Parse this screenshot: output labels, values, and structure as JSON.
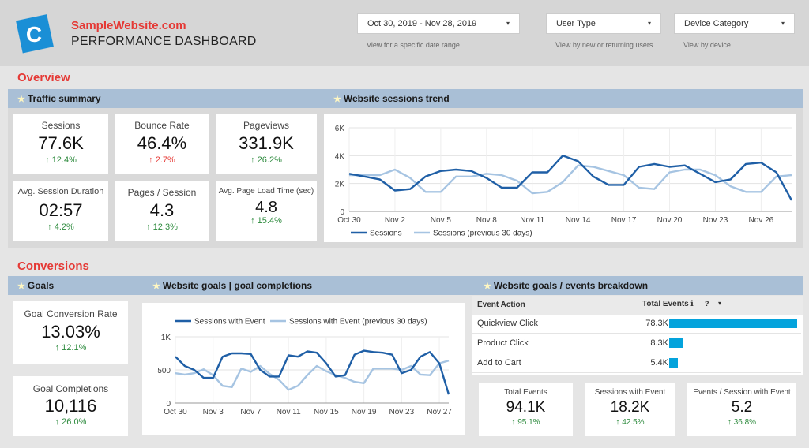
{
  "header": {
    "brand_name": "SampleWebsite.com",
    "title": "PERFORMANCE DASHBOARD",
    "logo_letter": "C",
    "controls": [
      {
        "value": "Oct 30, 2019 - Nov 28, 2019",
        "hint": "View for a specific date range"
      },
      {
        "value": "User Type",
        "hint": "View by new  or returning users"
      },
      {
        "value": "Device Category",
        "hint": "View by device"
      }
    ],
    "caret": "▾"
  },
  "overview": {
    "title": "Overview",
    "traffic_bar": "Traffic summary",
    "trend_bar": "Website sessions trend",
    "star": "★",
    "kpis": [
      {
        "label": "Sessions",
        "value": "77.6K",
        "change": "↑ 12.4%",
        "direction": "up"
      },
      {
        "label": "Bounce Rate",
        "value": "46.4%",
        "change": "↑ 2.7%",
        "direction": "bad"
      },
      {
        "label": "Pageviews",
        "value": "331.9K",
        "change": "↑ 26.2%",
        "direction": "up"
      },
      {
        "label": "Avg. Session Duration",
        "value": "02:57",
        "change": "↑ 4.2%",
        "direction": "up"
      },
      {
        "label": "Pages / Session",
        "value": "4.3",
        "change": "↑ 12.3%",
        "direction": "up"
      },
      {
        "label": "Avg. Page Load Time (sec)",
        "value": "4.8",
        "change": "↑ 15.4%",
        "direction": "up"
      }
    ]
  },
  "conversions": {
    "title": "Conversions",
    "goals_bar": "Goals",
    "completions_bar": "Website goals | goal completions",
    "breakdown_bar": "Website goals / events breakdown",
    "goal_kpis": [
      {
        "label": "Goal Conversion Rate",
        "value": "13.03%",
        "change": "↑ 12.1%"
      },
      {
        "label": "Goal Completions",
        "value": "10,116",
        "change": "↑ 26.0%"
      }
    ],
    "table": {
      "col_action": "Event Action",
      "col_total": "Total Events",
      "info_icon": "ℹ",
      "help_icon": "?",
      "sort_icon": "▾",
      "rows": [
        {
          "name": "Quickview Click",
          "value": "78.3K",
          "fraction": 1.0
        },
        {
          "name": "Product Click",
          "value": "8.3K",
          "fraction": 0.106
        },
        {
          "name": "Add to Cart",
          "value": "5.4K",
          "fraction": 0.069
        }
      ]
    },
    "event_kpis": [
      {
        "label": "Total Events",
        "value": "94.1K",
        "change": "↑ 95.1%"
      },
      {
        "label": "Sessions with Event",
        "value": "18.2K",
        "change": "↑ 42.5%"
      },
      {
        "label": "Events / Session with Event",
        "value": "5.2",
        "change": "↑ 36.8%"
      }
    ]
  },
  "colors": {
    "accent": "#e53935",
    "current": "#1f5fa6",
    "previous": "#a6c4e2",
    "bar_fill": "#04a3dc",
    "positive": "#2e8b3e"
  },
  "chart_data": [
    {
      "type": "line",
      "x": [
        0,
        1,
        2,
        3,
        4,
        5,
        6,
        7,
        8,
        9,
        10,
        11,
        12,
        13,
        14,
        15,
        16,
        17,
        18,
        19,
        20,
        21,
        22,
        23,
        24,
        25,
        26,
        27,
        28,
        29
      ],
      "xtick_index": [
        0,
        3,
        6,
        9,
        12,
        15,
        18,
        21,
        24,
        27
      ],
      "xtick_labels": [
        "Oct 30",
        "Nov 2",
        "Nov 5",
        "Nov 8",
        "Nov 11",
        "Nov 14",
        "Nov 17",
        "Nov 20",
        "Nov 23",
        "Nov 26"
      ],
      "yticks": [
        0,
        2000,
        4000,
        6000
      ],
      "ytick_labels": [
        "0",
        "2K",
        "4K",
        "6K"
      ],
      "ylim": [
        0,
        6000
      ],
      "grid": true,
      "legend_position": "bottom",
      "series": [
        {
          "name": "Sessions",
          "values": [
            2700,
            2500,
            2300,
            1500,
            1600,
            2500,
            2900,
            3000,
            2900,
            2400,
            1700,
            1700,
            2800,
            2800,
            4000,
            3600,
            2500,
            1900,
            1900,
            3200,
            3400,
            3200,
            3300,
            2700,
            2100,
            2300,
            3400,
            3500,
            2800,
            800
          ]
        },
        {
          "name": "Sessions (previous 30 days)",
          "values": [
            2600,
            2600,
            2600,
            3000,
            2400,
            1400,
            1400,
            2500,
            2500,
            2700,
            2600,
            2200,
            1300,
            1400,
            2100,
            3300,
            3200,
            2900,
            2600,
            1700,
            1600,
            2800,
            3000,
            3000,
            2600,
            1800,
            1400,
            1400,
            2500,
            2600
          ]
        }
      ]
    },
    {
      "type": "line",
      "x": [
        0,
        1,
        2,
        3,
        4,
        5,
        6,
        7,
        8,
        9,
        10,
        11,
        12,
        13,
        14,
        15,
        16,
        17,
        18,
        19,
        20,
        21,
        22,
        23,
        24,
        25,
        26,
        27,
        28,
        29
      ],
      "xtick_index": [
        0,
        4,
        8,
        12,
        16,
        20,
        24,
        28
      ],
      "xtick_labels": [
        "Oct 30",
        "Nov 3",
        "Nov 7",
        "Nov 11",
        "Nov 15",
        "Nov 19",
        "Nov 23",
        "Nov 27"
      ],
      "yticks": [
        0,
        500,
        1000
      ],
      "ytick_labels": [
        "0",
        "500",
        "1K"
      ],
      "ylim": [
        0,
        1000
      ],
      "grid": true,
      "legend_position": "top",
      "series": [
        {
          "name": "Sessions with Event",
          "values": [
            700,
            560,
            500,
            380,
            380,
            700,
            750,
            750,
            740,
            500,
            400,
            400,
            720,
            700,
            780,
            760,
            600,
            400,
            420,
            730,
            790,
            770,
            760,
            730,
            450,
            500,
            700,
            770,
            600,
            130
          ]
        },
        {
          "name": "Sessions with Event (previous 30 days)",
          "values": [
            450,
            430,
            450,
            510,
            420,
            260,
            240,
            520,
            470,
            560,
            440,
            350,
            200,
            260,
            420,
            560,
            480,
            420,
            380,
            320,
            300,
            520,
            520,
            520,
            500,
            560,
            430,
            420,
            600,
            640
          ]
        }
      ]
    }
  ]
}
